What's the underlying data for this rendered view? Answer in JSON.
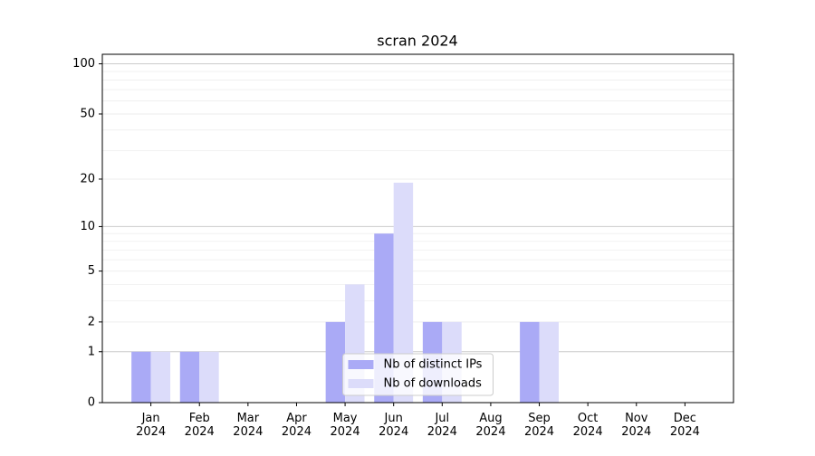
{
  "chart_data": {
    "type": "bar",
    "title": "scran 2024",
    "categories": [
      "Jan\n2024",
      "Feb\n2024",
      "Mar\n2024",
      "Apr\n2024",
      "May\n2024",
      "Jun\n2024",
      "Jul\n2024",
      "Aug\n2024",
      "Sep\n2024",
      "Oct\n2024",
      "Nov\n2024",
      "Dec\n2024"
    ],
    "series": [
      {
        "name": "Nb of distinct IPs",
        "color": "#aaaaf6",
        "values": [
          1,
          1,
          0,
          0,
          2,
          9,
          2,
          0,
          2,
          0,
          0,
          0
        ]
      },
      {
        "name": "Nb of downloads",
        "color": "#dcdcfa",
        "values": [
          1,
          1,
          0,
          0,
          4,
          19,
          2,
          0,
          2,
          0,
          0,
          0
        ]
      }
    ],
    "yscale": "log1p",
    "ylim": [
      0,
      114
    ],
    "yticks": [
      0,
      1,
      2,
      5,
      10,
      20,
      50,
      100
    ],
    "yminorticks": [
      3,
      4,
      6,
      7,
      8,
      9,
      30,
      40,
      60,
      70,
      80,
      90
    ],
    "grid": true,
    "legend": "lower center"
  }
}
